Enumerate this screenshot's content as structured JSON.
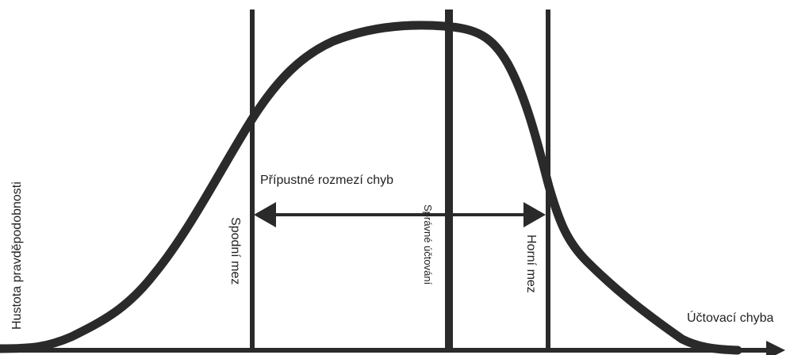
{
  "labels": {
    "range": "Přípustné rozmezí chyb",
    "lower": "Spodní mez",
    "correct": "Správné účtování",
    "upper": "Horní mez",
    "y_axis": "Hustota pravděpodobnosti",
    "x_axis": "Účtovací chyba"
  }
}
